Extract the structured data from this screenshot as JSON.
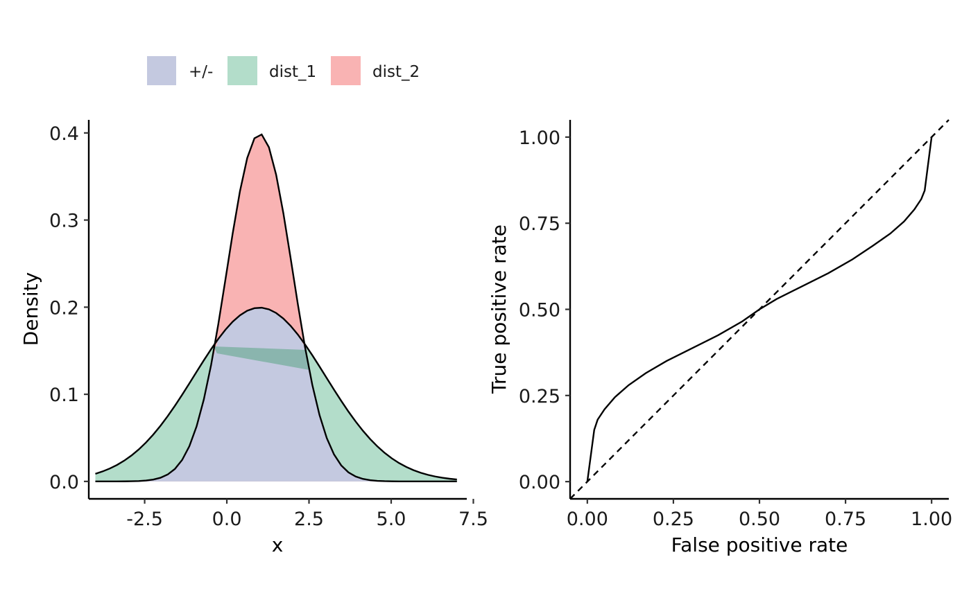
{
  "legend": {
    "items": [
      {
        "label": "+/-",
        "color": "#C4C9E0"
      },
      {
        "label": "dist_1",
        "color": "#B3DDCA"
      },
      {
        "label": "dist_2",
        "color": "#F9B3B3"
      }
    ]
  },
  "chart_data": [
    {
      "type": "area",
      "xlabel": "x",
      "ylabel": "Density",
      "xlim": [
        -4.2,
        7.3
      ],
      "ylim": [
        -0.02,
        0.415
      ],
      "xticks": [
        -2.5,
        0.0,
        2.5,
        5.0,
        7.5
      ],
      "xtick_labels": [
        "-2.5",
        "0.0",
        "2.5",
        "5.0",
        "7.5"
      ],
      "yticks": [
        0.0,
        0.1,
        0.2,
        0.3,
        0.4
      ],
      "ytick_labels": [
        "0.0",
        "0.1",
        "0.2",
        "0.3",
        "0.4"
      ],
      "grid": false,
      "legend_position": "top",
      "x_range": [
        -4,
        7
      ],
      "series": [
        {
          "name": "dist_1",
          "distribution": "normal",
          "mean": 1,
          "sd": 2,
          "fill": "#B3DDCA",
          "peak": 0.199
        },
        {
          "name": "dist_2",
          "distribution": "normal",
          "mean": 1,
          "sd": 1,
          "fill": "#F9B3B3",
          "peak": 0.399
        }
      ],
      "overlap_label": "+/-",
      "overlap_fill": "#C4C9E0",
      "overlap_artifact": {
        "points": [
          [
            -0.4,
            0.155
          ],
          [
            2.4,
            0.151
          ],
          [
            2.5,
            0.128
          ],
          [
            -0.3,
            0.147
          ]
        ],
        "fill": "#8AB5AE"
      }
    },
    {
      "type": "line",
      "xlabel": "False positive rate",
      "ylabel": "True positive rate",
      "xlim": [
        -0.05,
        1.05
      ],
      "ylim": [
        -0.05,
        1.05
      ],
      "xticks": [
        0.0,
        0.25,
        0.5,
        0.75,
        1.0
      ],
      "xtick_labels": [
        "0.00",
        "0.25",
        "0.50",
        "0.75",
        "1.00"
      ],
      "yticks": [
        0.0,
        0.25,
        0.5,
        0.75,
        1.0
      ],
      "ytick_labels": [
        "0.00",
        "0.25",
        "0.50",
        "0.75",
        "1.00"
      ],
      "grid": false,
      "series": [
        {
          "name": "ROC",
          "x": [
            0.0,
            0.02,
            0.03,
            0.05,
            0.08,
            0.12,
            0.17,
            0.23,
            0.3,
            0.38,
            0.45,
            0.5,
            0.55,
            0.62,
            0.7,
            0.77,
            0.83,
            0.88,
            0.92,
            0.95,
            0.97,
            0.98,
            1.0
          ],
          "y": [
            0.0,
            0.15,
            0.18,
            0.21,
            0.245,
            0.28,
            0.315,
            0.35,
            0.385,
            0.425,
            0.465,
            0.5,
            0.53,
            0.565,
            0.605,
            0.645,
            0.685,
            0.72,
            0.755,
            0.79,
            0.82,
            0.845,
            1.0
          ],
          "style": "solid"
        },
        {
          "name": "reference",
          "x": [
            -0.05,
            1.05
          ],
          "y": [
            -0.05,
            1.05
          ],
          "style": "dashed"
        }
      ]
    }
  ]
}
